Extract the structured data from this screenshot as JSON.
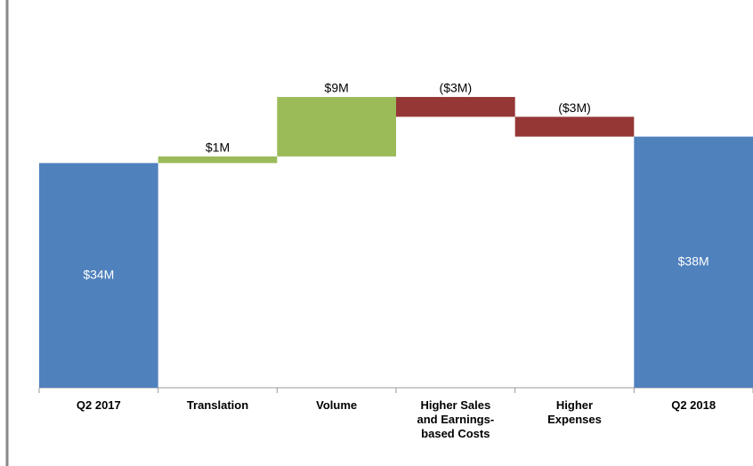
{
  "chart_data": {
    "type": "waterfall",
    "categories": [
      "Q2 2017",
      "Translation",
      "Volume",
      "Higher Sales and Earnings-based Costs",
      "Higher Expenses",
      "Q2 2018"
    ],
    "values": [
      34,
      1,
      9,
      -3,
      -3,
      38
    ],
    "value_labels": [
      "$34M",
      "$1M",
      "$9M",
      "($3M)",
      "($3M)",
      "$38M"
    ],
    "measure": [
      "total",
      "relative",
      "relative",
      "relative",
      "relative",
      "total"
    ],
    "colors": [
      "#4f81bd",
      "#9bbb59",
      "#9bbb59",
      "#953735",
      "#953735",
      "#4f81bd"
    ],
    "ylim": [
      0,
      58
    ]
  }
}
